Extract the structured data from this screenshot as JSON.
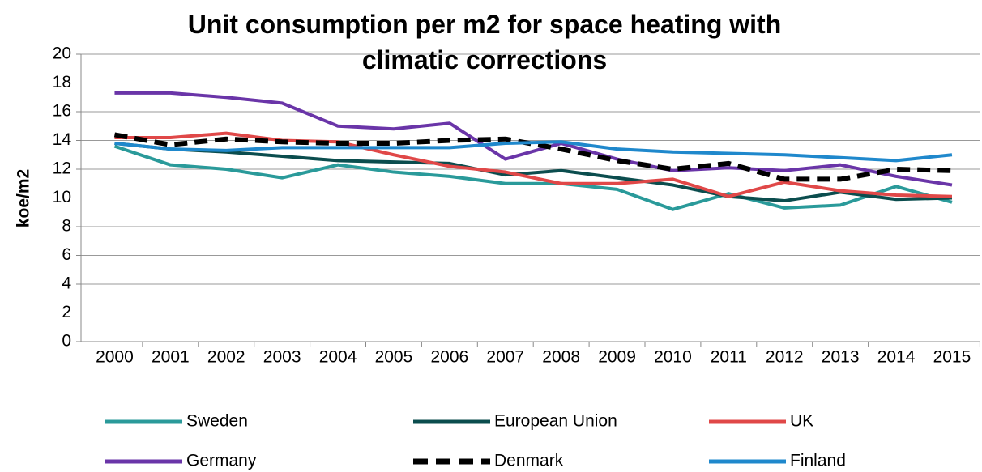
{
  "chart_data": {
    "type": "line",
    "title": "Unit consumption per m2 for space heating with climatic corrections",
    "y_label": "koe/m2",
    "categories": [
      "2000",
      "2001",
      "2002",
      "2003",
      "2004",
      "2005",
      "2006",
      "2007",
      "2008",
      "2009",
      "2010",
      "2011",
      "2012",
      "2013",
      "2014",
      "2015"
    ],
    "series": [
      {
        "name": "Sweden",
        "color": "#2a9a9a",
        "dashed": false,
        "values": [
          13.6,
          12.3,
          12.0,
          11.4,
          12.3,
          11.8,
          11.5,
          11.0,
          11.0,
          10.6,
          9.2,
          10.3,
          9.3,
          9.5,
          10.8,
          9.7
        ]
      },
      {
        "name": "European Union",
        "color": "#0b4d4e",
        "dashed": false,
        "values": [
          13.8,
          13.4,
          13.2,
          12.9,
          12.6,
          12.5,
          12.4,
          11.6,
          11.9,
          11.4,
          10.9,
          10.1,
          9.8,
          10.4,
          9.9,
          10.0
        ]
      },
      {
        "name": "UK",
        "color": "#e04848",
        "dashed": false,
        "values": [
          14.2,
          14.2,
          14.5,
          14.0,
          13.9,
          13.0,
          12.2,
          11.8,
          11.0,
          11.0,
          11.3,
          10.1,
          11.1,
          10.5,
          10.2,
          10.1
        ]
      },
      {
        "name": "Germany",
        "color": "#6a35a8",
        "dashed": false,
        "values": [
          17.3,
          17.3,
          17.0,
          16.6,
          15.0,
          14.8,
          15.2,
          12.7,
          13.8,
          12.7,
          11.9,
          12.1,
          11.9,
          12.3,
          11.5,
          10.9
        ]
      },
      {
        "name": "Denmark",
        "color": "#000000",
        "dashed": true,
        "values": [
          14.4,
          13.7,
          14.1,
          13.9,
          13.8,
          13.8,
          14.0,
          14.1,
          13.4,
          12.6,
          12.0,
          12.4,
          11.3,
          11.3,
          12.0,
          11.9
        ]
      },
      {
        "name": "Finland",
        "color": "#1f88cc",
        "dashed": false,
        "values": [
          13.8,
          13.4,
          13.3,
          13.5,
          13.5,
          13.5,
          13.5,
          13.8,
          13.9,
          13.4,
          13.2,
          13.1,
          13.0,
          12.8,
          12.6,
          13.0
        ]
      }
    ],
    "ylim": [
      0,
      20
    ],
    "yticks": [
      0,
      2,
      4,
      6,
      8,
      10,
      12,
      14,
      16,
      18,
      20
    ],
    "grid": true,
    "legend": "bottom"
  }
}
